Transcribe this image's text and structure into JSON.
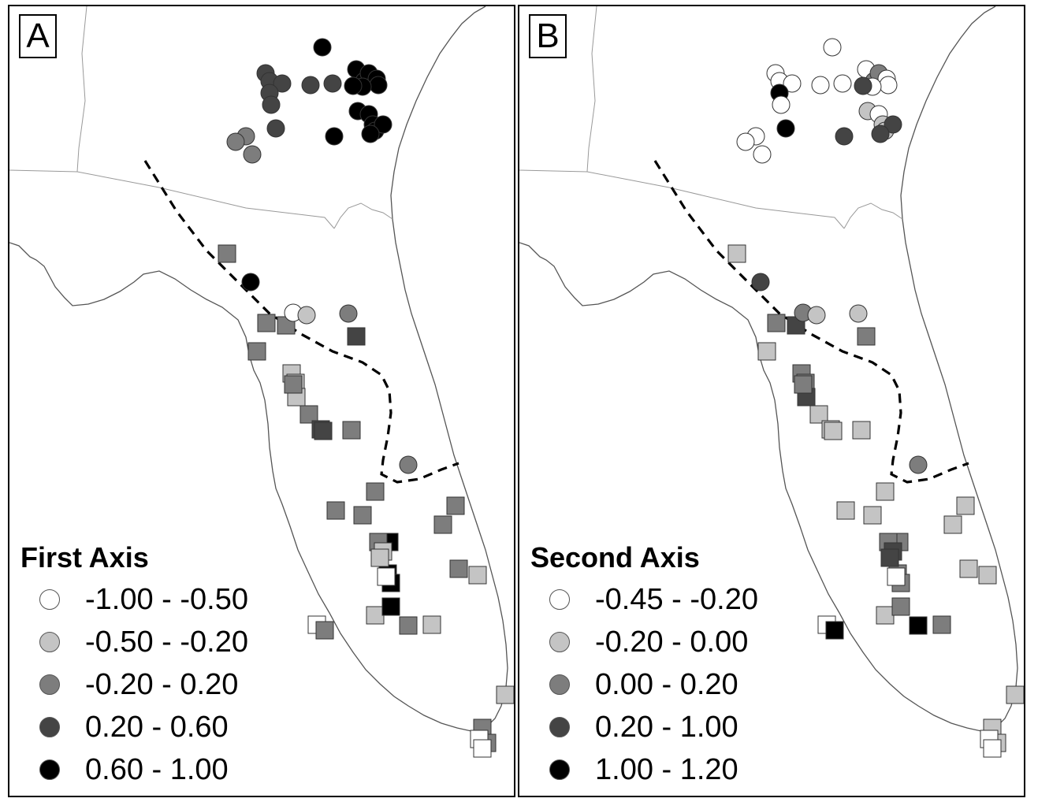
{
  "colors": {
    "c1": "#ffffff",
    "c2": "#c4c4c4",
    "c3": "#7d7d7d",
    "c4": "#444444",
    "c5": "#000000",
    "coast": "#555555",
    "state_line": "#999999"
  },
  "panels": [
    {
      "label": "A",
      "legend": {
        "title": "First Axis",
        "items": [
          {
            "label": "-1.00 - -0.50",
            "color": "#ffffff"
          },
          {
            "label": "-0.50 - -0.20",
            "color": "#c4c4c4"
          },
          {
            "label": "-0.20 - 0.20",
            "color": "#7d7d7d"
          },
          {
            "label": "0.20 - 0.60",
            "color": "#444444"
          },
          {
            "label": "0.60 - 1.00",
            "color": "#000000"
          }
        ]
      },
      "circles_class": [
        3,
        3,
        3,
        4,
        4,
        4,
        4,
        4,
        4,
        4,
        4,
        5,
        5,
        5,
        5,
        5,
        5,
        5,
        5,
        5,
        5,
        5,
        5,
        5,
        5,
        5,
        5,
        3,
        1,
        2,
        3
      ],
      "squares_class": [
        3,
        3,
        3,
        3,
        3,
        2,
        2,
        2,
        3,
        4,
        4,
        4,
        3,
        3,
        3,
        3,
        3,
        3,
        3,
        2,
        2,
        5,
        5,
        5,
        5,
        1,
        1,
        3,
        3,
        2,
        2,
        3,
        3,
        1,
        1,
        3,
        2,
        2
      ]
    },
    {
      "label": "B",
      "legend": {
        "title": "Second Axis",
        "items": [
          {
            "label": "-0.45 - -0.20",
            "color": "#ffffff"
          },
          {
            "label": "-0.20 - 0.00",
            "color": "#c4c4c4"
          },
          {
            "label": "0.00 - 0.20",
            "color": "#7d7d7d"
          },
          {
            "label": "0.20 - 1.00",
            "color": "#444444"
          },
          {
            "label": "1.00 - 1.20",
            "color": "#000000"
          }
        ]
      },
      "circles_class": [
        1,
        1,
        1,
        1,
        1,
        1,
        5,
        1,
        5,
        1,
        1,
        1,
        1,
        3,
        3,
        1,
        1,
        1,
        2,
        1,
        2,
        2,
        4,
        4,
        4,
        4,
        4,
        3,
        3,
        2,
        2
      ],
      "squares_class": [
        2,
        2,
        3,
        4,
        2,
        3,
        3,
        4,
        3,
        3,
        2,
        2,
        2,
        2,
        2,
        2,
        2,
        2,
        2,
        2,
        2,
        3,
        3,
        3,
        3,
        1,
        1,
        5,
        5,
        3,
        2,
        2,
        2,
        1,
        1,
        3,
        4,
        4
      ]
    }
  ]
}
